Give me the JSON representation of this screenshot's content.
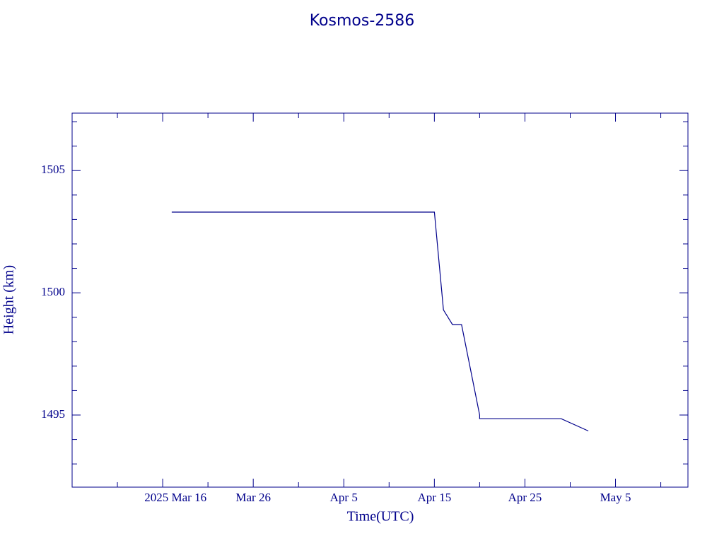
{
  "chart_data": {
    "type": "line",
    "title": "Kosmos-2586",
    "x_label": "Time(UTC)",
    "y_label": "Height (km)",
    "color": "#00008b",
    "x": [
      "2025-03-17",
      "2025-04-15",
      "2025-04-16",
      "2025-04-17",
      "2025-04-18",
      "2025-04-20",
      "2025-04-20",
      "2025-04-29",
      "2025-05-02"
    ],
    "values": [
      1503.3,
      1503.3,
      1499.3,
      1498.7,
      1498.7,
      1495.0,
      1494.85,
      1494.85,
      1494.35
    ],
    "xlim": [
      "2025-03-06",
      "2025-05-13"
    ],
    "xticks": [
      {
        "value": "2025-03-16",
        "label": "2025 Mar 16"
      },
      {
        "value": "2025-03-26",
        "label": "Mar 26"
      },
      {
        "value": "2025-04-05",
        "label": "Apr  5"
      },
      {
        "value": "2025-04-15",
        "label": "Apr 15"
      },
      {
        "value": "2025-04-25",
        "label": "Apr 25"
      },
      {
        "value": "2025-05-05",
        "label": "May  5"
      }
    ],
    "xminor": [
      "2025-03-11",
      "2025-03-21",
      "2025-03-31",
      "2025-04-10",
      "2025-04-20",
      "2025-04-30",
      "2025-05-10"
    ],
    "ylim": [
      1492.05,
      1507.35
    ],
    "yticks": [
      1495,
      1500,
      1505
    ],
    "yminor": [
      1493,
      1494,
      1496,
      1497,
      1498,
      1499,
      1501,
      1502,
      1503,
      1504,
      1506,
      1507
    ]
  }
}
